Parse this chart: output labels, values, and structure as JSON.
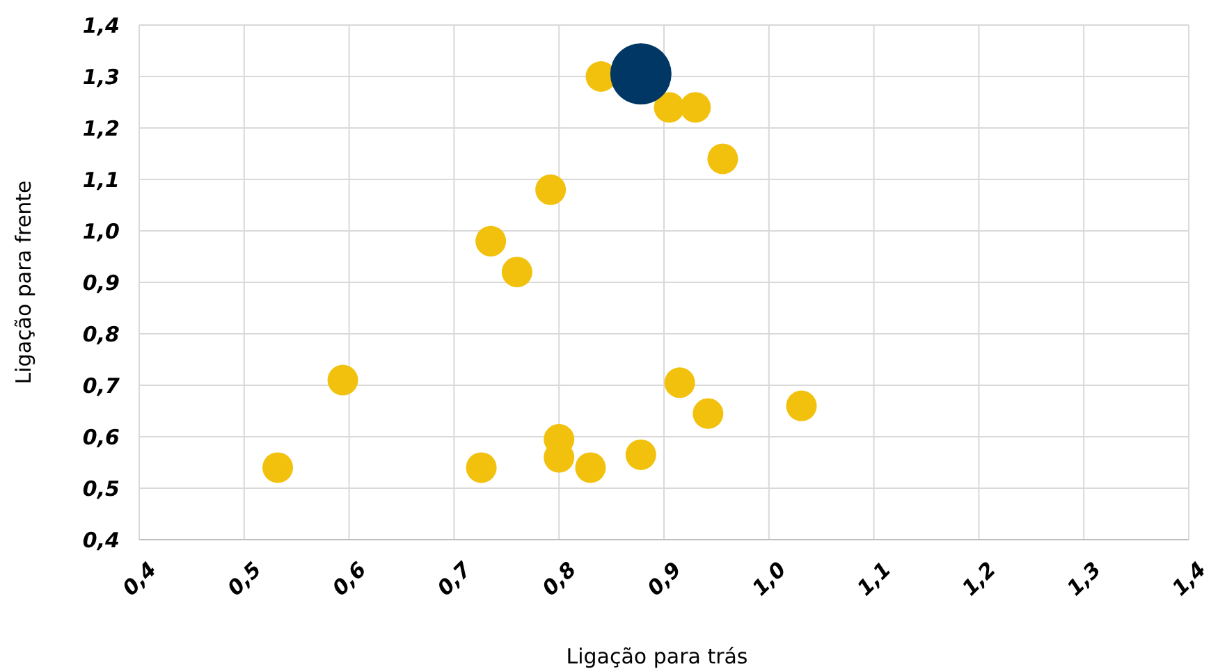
{
  "chart_data": {
    "type": "bubble",
    "xlabel": "Ligação para trás",
    "ylabel": "Ligação para frente",
    "xlim": [
      0.4,
      1.4
    ],
    "ylim": [
      0.4,
      1.4
    ],
    "xticks": [
      {
        "value": 0.4,
        "label": "0,4"
      },
      {
        "value": 0.5,
        "label": "0,5"
      },
      {
        "value": 0.6,
        "label": "0,6"
      },
      {
        "value": 0.7,
        "label": "0,7"
      },
      {
        "value": 0.8,
        "label": "0,8"
      },
      {
        "value": 0.9,
        "label": "0,9"
      },
      {
        "value": 1.0,
        "label": "1,0"
      },
      {
        "value": 1.1,
        "label": "1,1"
      },
      {
        "value": 1.2,
        "label": "1,2"
      },
      {
        "value": 1.3,
        "label": "1,3"
      },
      {
        "value": 1.4,
        "label": "1,4"
      }
    ],
    "yticks": [
      {
        "value": 0.4,
        "label": "0,4"
      },
      {
        "value": 0.5,
        "label": "0,5"
      },
      {
        "value": 0.6,
        "label": "0,6"
      },
      {
        "value": 0.7,
        "label": "0,7"
      },
      {
        "value": 0.8,
        "label": "0,8"
      },
      {
        "value": 0.9,
        "label": "0,9"
      },
      {
        "value": 1.0,
        "label": "1,0"
      },
      {
        "value": 1.1,
        "label": "1,1"
      },
      {
        "value": 1.2,
        "label": "1,2"
      },
      {
        "value": 1.3,
        "label": "1,3"
      },
      {
        "value": 1.4,
        "label": "1,4"
      }
    ],
    "grid": true,
    "series": [
      {
        "color": "#f2c10d",
        "x": [
          0.84,
          0.905,
          0.93,
          0.956,
          0.792,
          0.735,
          0.76,
          0.594,
          0.915,
          0.942,
          1.031,
          0.8,
          0.8,
          0.878,
          0.83,
          0.726,
          0.532
        ],
        "values": [
          1.3,
          1.24,
          1.24,
          1.14,
          1.08,
          0.98,
          0.92,
          0.71,
          0.705,
          0.645,
          0.66,
          0.595,
          0.56,
          0.565,
          0.54,
          0.54,
          0.54
        ],
        "sizes": [
          0.25,
          0.25,
          0.25,
          0.25,
          0.25,
          0.25,
          0.25,
          0.25,
          0.25,
          0.25,
          0.25,
          0.25,
          0.25,
          0.25,
          0.25,
          0.25,
          0.25
        ]
      },
      {
        "color": "#003764",
        "x": [
          0.878
        ],
        "values": [
          1.305
        ],
        "sizes": [
          1
        ]
      }
    ]
  }
}
